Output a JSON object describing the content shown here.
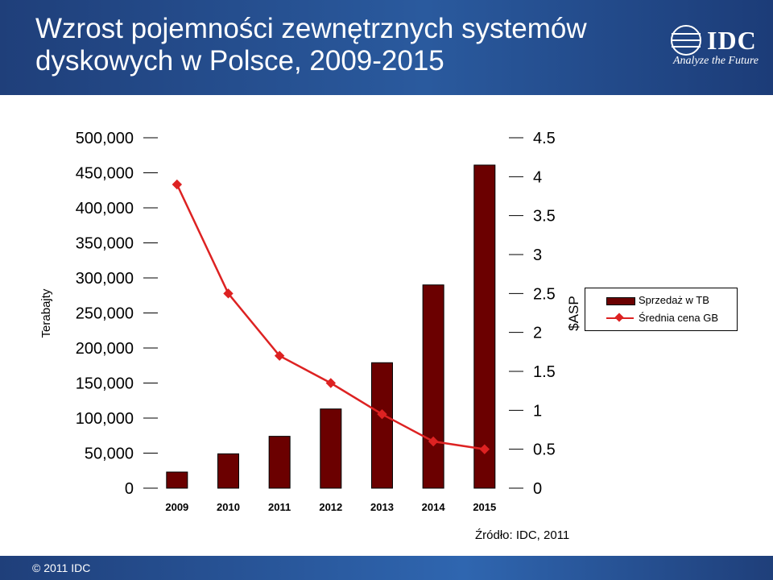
{
  "header": {
    "title": "Wzrost pojemności zewnętrznych systemów dyskowych w Polsce, 2009-2015",
    "logo_text": "IDC",
    "logo_tagline": "Analyze the Future"
  },
  "footer": {
    "copyright": "© 2011 IDC",
    "source": "Źródło: IDC, 2011"
  },
  "colors": {
    "header_bg": "#1f3f7a",
    "bar_fill": "#6b0000",
    "line": "#dd2222"
  },
  "chart_data": {
    "type": "bar",
    "title": "Wzrost pojemności zewnętrznych systemów dyskowych w Polsce, 2009-2015",
    "categories": [
      "2009",
      "2010",
      "2011",
      "2012",
      "2013",
      "2014",
      "2015"
    ],
    "ylabel": "Terabajty",
    "y2label": "$ASP",
    "ylim": [
      0,
      500000
    ],
    "y2lim": [
      0,
      4.5
    ],
    "yticks": [
      "0",
      "50,000",
      "100,000",
      "150,000",
      "200,000",
      "250,000",
      "300,000",
      "350,000",
      "400,000",
      "450,000",
      "500,000"
    ],
    "y2ticks": [
      "0",
      "0.5",
      "1",
      "1.5",
      "2",
      "2.5",
      "3",
      "3.5",
      "4",
      "4.5"
    ],
    "legend_position": "right",
    "grid": false,
    "series": [
      {
        "name": "Sprzedaż w TB",
        "type": "bar",
        "axis": "left",
        "values": [
          23000,
          49000,
          74000,
          113000,
          179000,
          290000,
          461000
        ]
      },
      {
        "name": "Średnia cena GB",
        "type": "line",
        "axis": "right",
        "values": [
          3.9,
          2.5,
          1.7,
          1.35,
          0.95,
          0.6,
          0.5
        ]
      }
    ]
  }
}
